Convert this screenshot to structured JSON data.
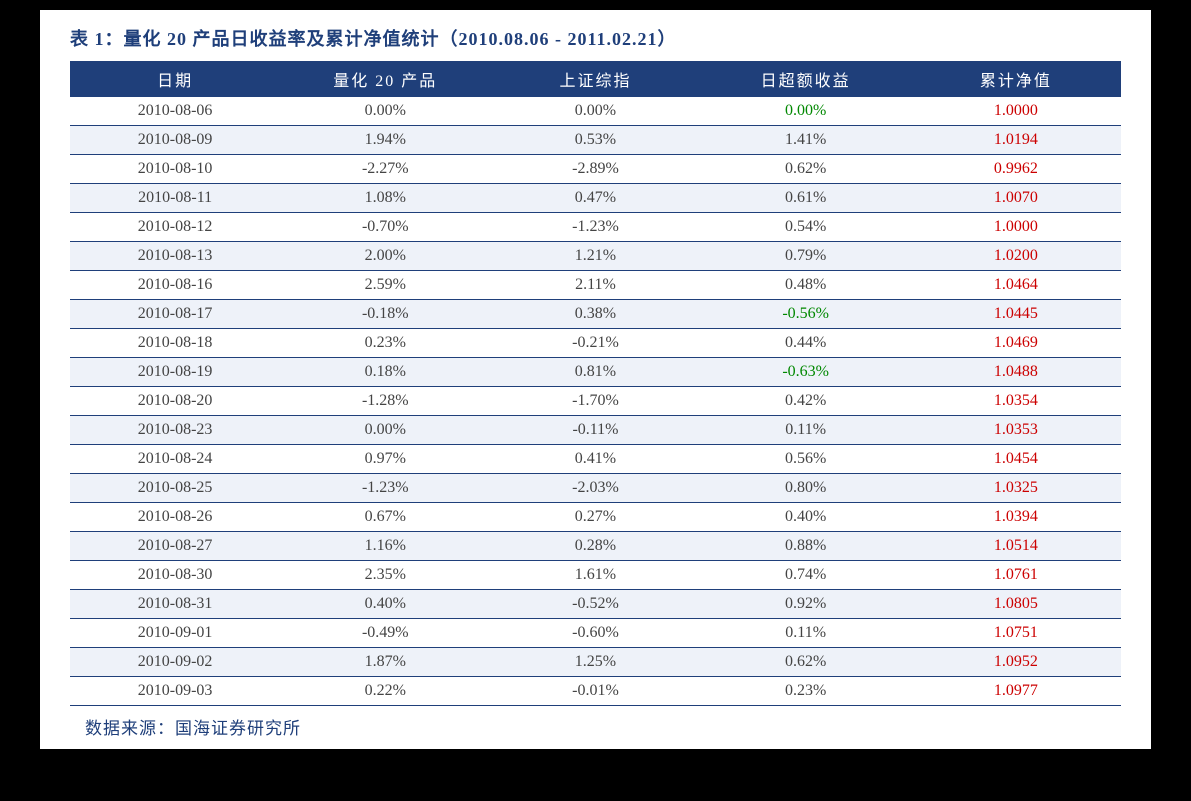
{
  "title": "表 1：量化 20 产品日收益率及累计净值统计（2010.08.06 - 2011.02.21）",
  "columns": [
    "日期",
    "量化 20 产品",
    "上证综指",
    "日超额收益",
    "累计净值"
  ],
  "source": "数据来源：国海证券研究所",
  "colors": {
    "header_bg": "#1f3f7a",
    "header_text": "#ffffff",
    "row_even_bg": "#eef2f9",
    "row_odd_bg": "#ffffff",
    "border": "#1f3f7a",
    "title_color": "#1f3f7a",
    "nav_color": "#cc0000",
    "neg_excess_color": "#008800",
    "cell_text": "#444444"
  },
  "rows": [
    {
      "date": "2010-08-06",
      "prod": "0.00%",
      "idx": "0.00%",
      "excess": "0.00%",
      "excess_neg": true,
      "nav": "1.0000"
    },
    {
      "date": "2010-08-09",
      "prod": "1.94%",
      "idx": "0.53%",
      "excess": "1.41%",
      "excess_neg": false,
      "nav": "1.0194"
    },
    {
      "date": "2010-08-10",
      "prod": "-2.27%",
      "idx": "-2.89%",
      "excess": "0.62%",
      "excess_neg": false,
      "nav": "0.9962"
    },
    {
      "date": "2010-08-11",
      "prod": "1.08%",
      "idx": "0.47%",
      "excess": "0.61%",
      "excess_neg": false,
      "nav": "1.0070"
    },
    {
      "date": "2010-08-12",
      "prod": "-0.70%",
      "idx": "-1.23%",
      "excess": "0.54%",
      "excess_neg": false,
      "nav": "1.0000"
    },
    {
      "date": "2010-08-13",
      "prod": "2.00%",
      "idx": "1.21%",
      "excess": "0.79%",
      "excess_neg": false,
      "nav": "1.0200"
    },
    {
      "date": "2010-08-16",
      "prod": "2.59%",
      "idx": "2.11%",
      "excess": "0.48%",
      "excess_neg": false,
      "nav": "1.0464"
    },
    {
      "date": "2010-08-17",
      "prod": "-0.18%",
      "idx": "0.38%",
      "excess": "-0.56%",
      "excess_neg": true,
      "nav": "1.0445"
    },
    {
      "date": "2010-08-18",
      "prod": "0.23%",
      "idx": "-0.21%",
      "excess": "0.44%",
      "excess_neg": false,
      "nav": "1.0469"
    },
    {
      "date": "2010-08-19",
      "prod": "0.18%",
      "idx": "0.81%",
      "excess": "-0.63%",
      "excess_neg": true,
      "nav": "1.0488"
    },
    {
      "date": "2010-08-20",
      "prod": "-1.28%",
      "idx": "-1.70%",
      "excess": "0.42%",
      "excess_neg": false,
      "nav": "1.0354"
    },
    {
      "date": "2010-08-23",
      "prod": "0.00%",
      "idx": "-0.11%",
      "excess": "0.11%",
      "excess_neg": false,
      "nav": "1.0353"
    },
    {
      "date": "2010-08-24",
      "prod": "0.97%",
      "idx": "0.41%",
      "excess": "0.56%",
      "excess_neg": false,
      "nav": "1.0454"
    },
    {
      "date": "2010-08-25",
      "prod": "-1.23%",
      "idx": "-2.03%",
      "excess": "0.80%",
      "excess_neg": false,
      "nav": "1.0325"
    },
    {
      "date": "2010-08-26",
      "prod": "0.67%",
      "idx": "0.27%",
      "excess": "0.40%",
      "excess_neg": false,
      "nav": "1.0394"
    },
    {
      "date": "2010-08-27",
      "prod": "1.16%",
      "idx": "0.28%",
      "excess": "0.88%",
      "excess_neg": false,
      "nav": "1.0514"
    },
    {
      "date": "2010-08-30",
      "prod": "2.35%",
      "idx": "1.61%",
      "excess": "0.74%",
      "excess_neg": false,
      "nav": "1.0761"
    },
    {
      "date": "2010-08-31",
      "prod": "0.40%",
      "idx": "-0.52%",
      "excess": "0.92%",
      "excess_neg": false,
      "nav": "1.0805"
    },
    {
      "date": "2010-09-01",
      "prod": "-0.49%",
      "idx": "-0.60%",
      "excess": "0.11%",
      "excess_neg": false,
      "nav": "1.0751"
    },
    {
      "date": "2010-09-02",
      "prod": "1.87%",
      "idx": "1.25%",
      "excess": "0.62%",
      "excess_neg": false,
      "nav": "1.0952"
    },
    {
      "date": "2010-09-03",
      "prod": "0.22%",
      "idx": "-0.01%",
      "excess": "0.23%",
      "excess_neg": false,
      "nav": "1.0977"
    }
  ]
}
